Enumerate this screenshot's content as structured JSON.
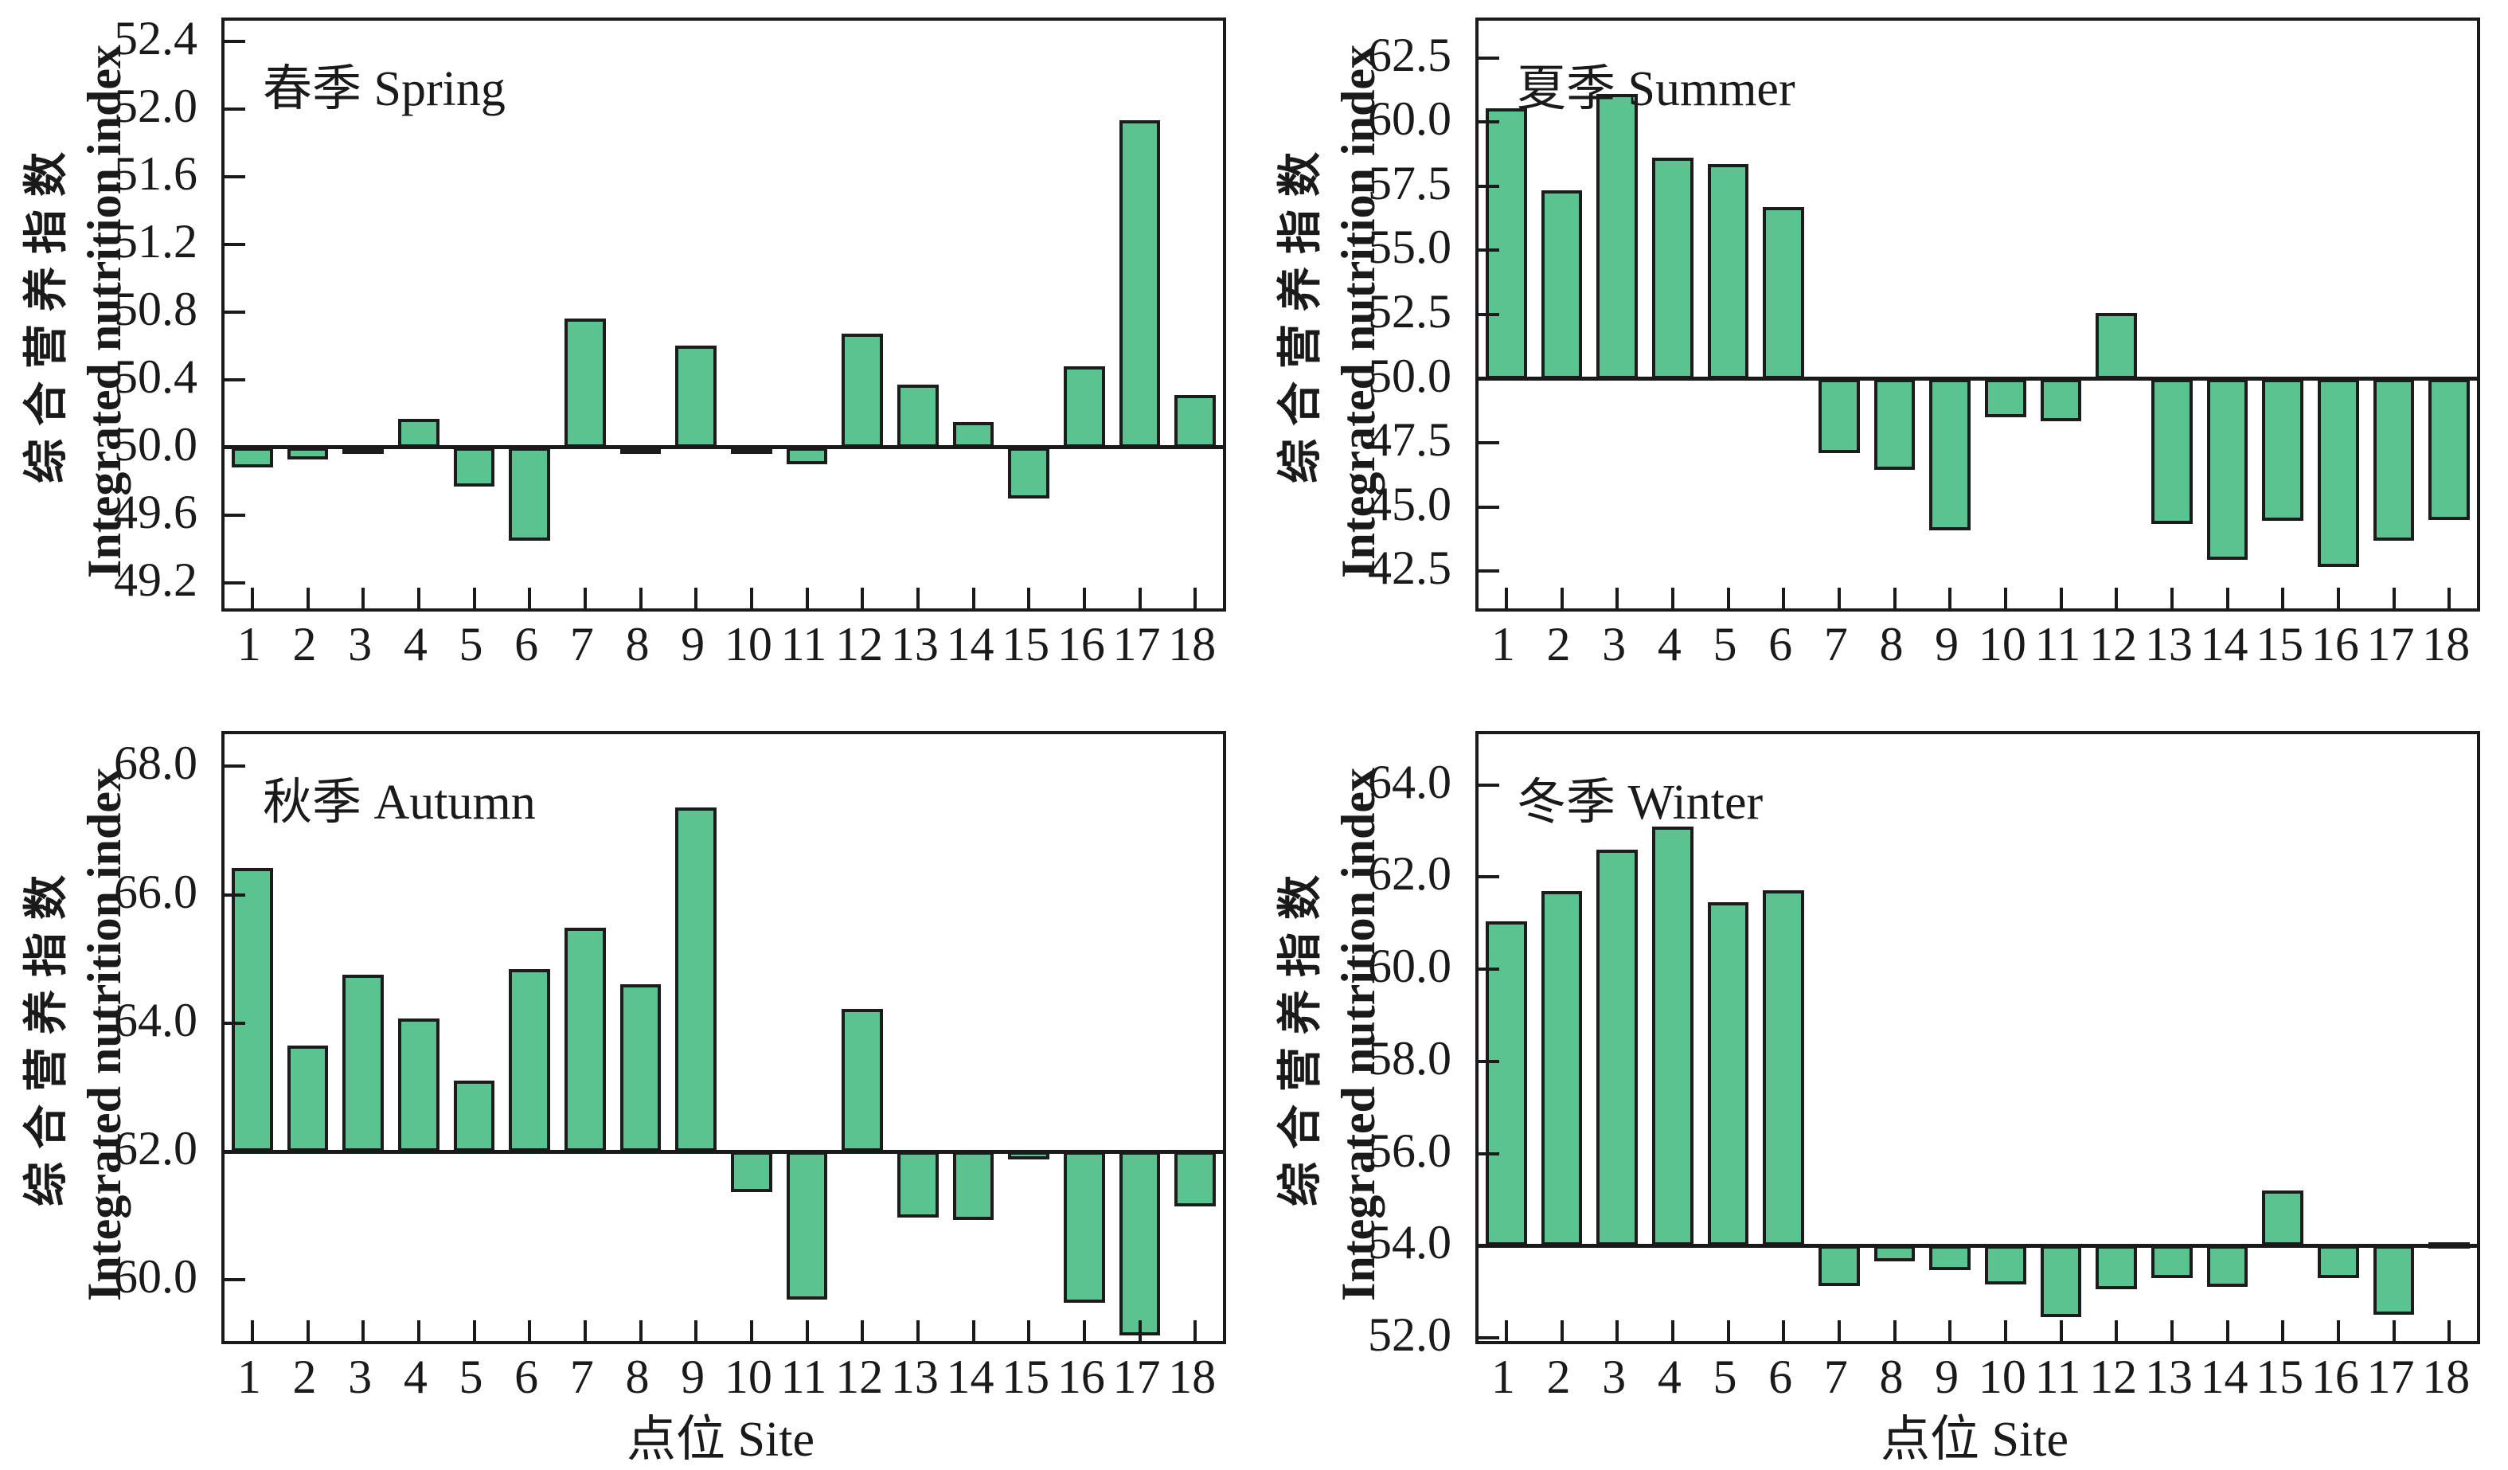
{
  "figure": {
    "background": "#ffffff",
    "ylabel_cn": "综合营养指数",
    "ylabel_en": "Integrated nutrition index",
    "xlabel": "点位 Site"
  },
  "colors": {
    "bar_fill": "#5bc38f",
    "bar_border": "#1c1c1c",
    "axis": "#1a1a1a",
    "text": "#1a1a1a"
  },
  "chart_data": [
    {
      "type": "bar",
      "title": "春季 Spring",
      "categories": [
        "1",
        "2",
        "3",
        "4",
        "5",
        "6",
        "7",
        "8",
        "9",
        "10",
        "11",
        "12",
        "13",
        "14",
        "15",
        "16",
        "17",
        "18"
      ],
      "values": [
        49.88,
        49.93,
        49.98,
        50.17,
        49.77,
        49.45,
        50.76,
        49.98,
        50.6,
        49.96,
        49.9,
        50.67,
        50.37,
        50.15,
        49.7,
        50.48,
        51.93,
        50.31
      ],
      "baseline": 50.0,
      "ylim": [
        49.05,
        52.52
      ],
      "yticks": [
        "49.2",
        "49.6",
        "50.0",
        "50.4",
        "50.8",
        "51.2",
        "51.6",
        "52.0",
        "52.4"
      ],
      "ylabel": "综合营养指数 Integrated nutrition index",
      "xlabel": "",
      "grid": false,
      "legend": "none"
    },
    {
      "type": "bar",
      "title": "夏季 Summer",
      "categories": [
        "1",
        "2",
        "3",
        "4",
        "5",
        "6",
        "7",
        "8",
        "9",
        "10",
        "11",
        "12",
        "13",
        "14",
        "15",
        "16",
        "17",
        "18"
      ],
      "values": [
        60.55,
        57.35,
        61.1,
        58.6,
        58.35,
        56.7,
        47.1,
        46.45,
        44.1,
        48.5,
        48.35,
        52.55,
        44.35,
        42.95,
        44.45,
        42.65,
        43.7,
        44.5
      ],
      "baseline": 50.0,
      "ylim": [
        41.05,
        63.95
      ],
      "yticks": [
        "42.5",
        "45.0",
        "47.5",
        "50.0",
        "52.5",
        "55.0",
        "57.5",
        "60.0",
        "62.5"
      ],
      "ylabel": "综合营养指数 Integrated nutrition index",
      "xlabel": "",
      "grid": false,
      "legend": "none"
    },
    {
      "type": "bar",
      "title": "秋季 Autumn",
      "categories": [
        "1",
        "2",
        "3",
        "4",
        "5",
        "6",
        "7",
        "8",
        "9",
        "10",
        "11",
        "12",
        "13",
        "14",
        "15",
        "16",
        "17",
        "18"
      ],
      "values": [
        66.42,
        63.65,
        64.76,
        64.07,
        63.1,
        64.84,
        65.49,
        64.6,
        67.36,
        61.37,
        59.7,
        64.22,
        60.97,
        60.93,
        61.88,
        59.64,
        59.14,
        61.15
      ],
      "baseline": 62.0,
      "ylim": [
        59.05,
        68.5
      ],
      "yticks": [
        "60.0",
        "62.0",
        "64.0",
        "66.0",
        "68.0"
      ],
      "ylabel": "综合营养指数 Integrated nutrition index",
      "xlabel": "点位 Site",
      "grid": false,
      "legend": "none"
    },
    {
      "type": "bar",
      "title": "冬季 Winter",
      "categories": [
        "1",
        "2",
        "3",
        "4",
        "5",
        "6",
        "7",
        "8",
        "9",
        "10",
        "11",
        "12",
        "13",
        "14",
        "15",
        "16",
        "17",
        "18"
      ],
      "values": [
        61.03,
        61.7,
        62.6,
        63.1,
        61.45,
        61.72,
        53.12,
        53.66,
        53.46,
        53.15,
        52.45,
        53.05,
        53.3,
        53.1,
        55.2,
        53.3,
        52.5,
        54.08
      ],
      "baseline": 54.0,
      "ylim": [
        51.93,
        65.1
      ],
      "yticks": [
        "52.0",
        "54.0",
        "56.0",
        "58.0",
        "60.0",
        "62.0",
        "64.0"
      ],
      "ylabel": "综合营养指数 Integrated nutrition index",
      "xlabel": "点位 Site",
      "grid": false,
      "legend": "none"
    }
  ]
}
